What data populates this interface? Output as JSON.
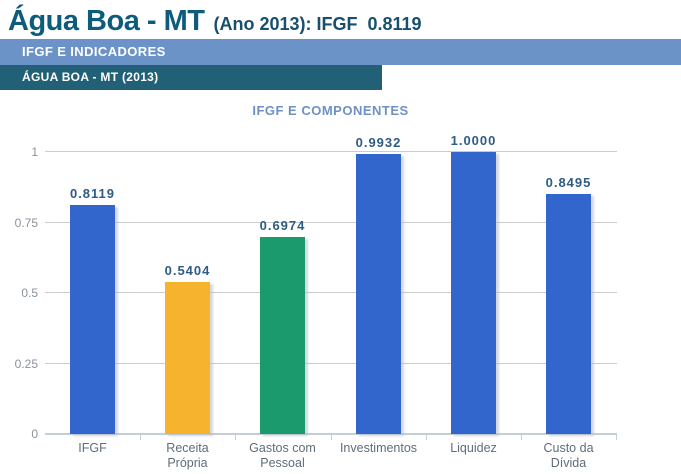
{
  "header": {
    "title_main": "Água Boa - MT",
    "title_detail": "(Ano 2013): IFGF  0.8119",
    "title_main_color": "#0E5C7C",
    "title_detail_color": "#174F6C"
  },
  "bands": {
    "primary": {
      "label": "IFGF E INDICADORES",
      "bg": "#6C93C7"
    },
    "secondary": {
      "label": "ÁGUA BOA - MT (2013)",
      "bg": "#216077"
    }
  },
  "chart_data": {
    "type": "bar",
    "title": "IFGF E COMPONENTES",
    "title_color": "#6E90C5",
    "categories": [
      "IFGF",
      "Receita Própria",
      "Gastos com Pessoal",
      "Investimentos",
      "Liquidez",
      "Custo da Dívida"
    ],
    "category_lines": [
      [
        "IFGF"
      ],
      [
        "Receita",
        "Própria"
      ],
      [
        "Gastos com",
        "Pessoal"
      ],
      [
        "Investimentos"
      ],
      [
        "Liquidez"
      ],
      [
        "Custo da",
        "Dívida"
      ]
    ],
    "values": [
      0.8119,
      0.5404,
      0.6974,
      0.9932,
      1.0,
      0.8495
    ],
    "value_labels": [
      "0.8119",
      "0.5404",
      "0.6974",
      "0.9932",
      "1.0000",
      "0.8495"
    ],
    "bar_colors": [
      "#3366CC",
      "#F5B32E",
      "#1B9A6E",
      "#3366CC",
      "#3366CC",
      "#3366CC"
    ],
    "value_label_color": "#2E5C85",
    "xlabel": "",
    "ylabel": "",
    "ylim": [
      0,
      1
    ],
    "yticks": [
      0,
      0.25,
      0.5,
      0.75,
      1
    ],
    "ytick_labels": [
      "0",
      "0.25",
      "0.5",
      "0.75",
      "1"
    ],
    "grid": true,
    "legend": "none"
  }
}
